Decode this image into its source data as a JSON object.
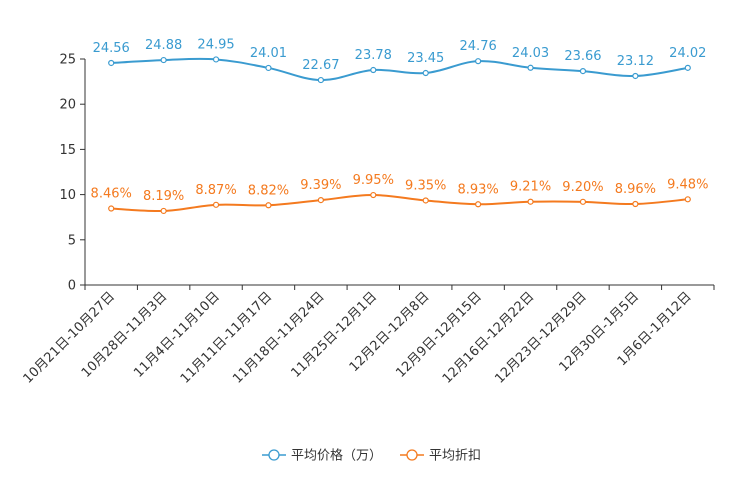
{
  "chart_data": {
    "type": "line",
    "categories": [
      "10月21日-10月27日",
      "10月28日-11月3日",
      "11月4日-11月10日",
      "11月11日-11月17日",
      "11月18日-11月24日",
      "11月25日-12月1日",
      "12月2日-12月8日",
      "12月9日-12月15日",
      "12月16日-12月22日",
      "12月23日-12月29日",
      "12月30日-1月5日",
      "1月6日-1月12日"
    ],
    "series": [
      {
        "name": "平均价格（万）",
        "color": "#3a9bd0",
        "values": [
          24.56,
          24.88,
          24.95,
          24.01,
          22.67,
          23.78,
          23.45,
          24.76,
          24.03,
          23.66,
          23.12,
          24.02
        ],
        "labels": [
          "24.56",
          "24.88",
          "24.95",
          "24.01",
          "22.67",
          "23.78",
          "23.45",
          "24.76",
          "24.03",
          "23.66",
          "23.12",
          "24.02"
        ]
      },
      {
        "name": "平均折扣",
        "color": "#f47a1f",
        "values": [
          8.46,
          8.19,
          8.87,
          8.82,
          9.39,
          9.95,
          9.35,
          8.93,
          9.21,
          9.2,
          8.96,
          9.48
        ],
        "labels": [
          "8.46%",
          "8.19%",
          "8.87%",
          "8.82%",
          "9.39%",
          "9.95%",
          "9.35%",
          "8.93%",
          "9.21%",
          "9.20%",
          "8.96%",
          "9.48%"
        ]
      }
    ],
    "ylim": [
      0,
      25
    ],
    "yticks": [
      "0",
      "5",
      "10",
      "15",
      "20",
      "25"
    ],
    "legend_position": "bottom",
    "grid": false
  }
}
